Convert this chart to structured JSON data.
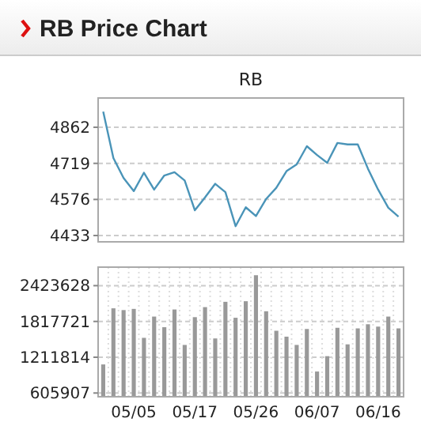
{
  "chart_data": [
    {
      "type": "line",
      "title": "RB Price Chart",
      "subtitle": "RB",
      "categories": [
        null,
        null,
        null,
        null,
        null,
        null,
        null,
        null,
        null,
        null,
        null,
        null,
        null,
        null,
        null,
        null,
        null,
        null,
        null,
        null,
        null,
        null,
        null,
        null,
        null,
        null,
        null,
        null,
        null,
        null
      ],
      "series": [
        {
          "color": "#4a94b8",
          "values": [
            4924,
            4740,
            4661,
            4609,
            4682,
            4615,
            4671,
            4684,
            4651,
            4533,
            4584,
            4638,
            4605,
            4470,
            4545,
            4510,
            4578,
            4622,
            4688,
            4715,
            4787,
            4752,
            4721,
            4800,
            4794,
            4794,
            4698,
            4615,
            4543,
            4508
          ]
        }
      ],
      "ylim": [
        4408,
        4978
      ],
      "yticks": [
        4433,
        4576,
        4719,
        4862
      ],
      "grid": "y",
      "tick_labels": "y",
      "marker": "none"
    },
    {
      "type": "bar",
      "categories": [
        null,
        null,
        null,
        "05/05",
        null,
        null,
        null,
        null,
        null,
        "05/17",
        null,
        null,
        null,
        null,
        null,
        "05/26",
        null,
        null,
        null,
        null,
        null,
        "06/07",
        null,
        null,
        null,
        null,
        null,
        "06/16",
        null,
        null
      ],
      "series": [
        {
          "color": "#999999",
          "values": [
            1090000,
            2040000,
            2010000,
            2030000,
            1540000,
            1900000,
            1720000,
            2020000,
            1420000,
            1890000,
            2060000,
            1530000,
            2150000,
            1880000,
            2160000,
            2600000,
            1990000,
            1660000,
            1560000,
            1420000,
            1690000,
            970000,
            1230000,
            1710000,
            1430000,
            1700000,
            1770000,
            1730000,
            1900000,
            1700000
          ]
        }
      ],
      "ylim": [
        543000,
        2737000
      ],
      "yticks": [
        605907,
        1211814,
        1817721,
        2423628
      ],
      "grid": true
    }
  ]
}
